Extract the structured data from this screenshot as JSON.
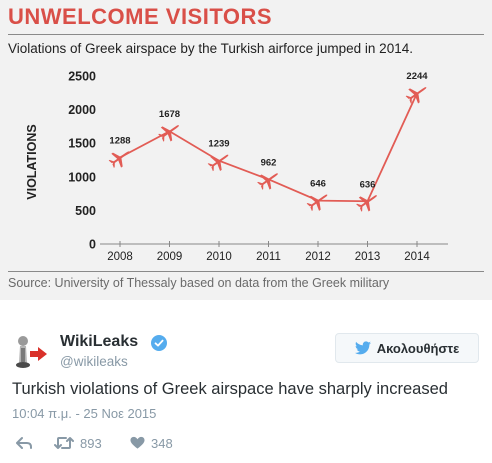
{
  "infographic": {
    "title": "UNWELCOME VISITORS",
    "subtitle": "Violations of Greek airspace by the Turkish airforce jumped in 2014.",
    "source": "Source: University of Thessaly based on data from the Greek military"
  },
  "chart_data": {
    "type": "line",
    "title": "UNWELCOME VISITORS",
    "subtitle": "Violations of Greek airspace by the Turkish airforce jumped in 2014.",
    "xlabel": "",
    "ylabel": "VIOLATIONS",
    "x": [
      "2008",
      "2009",
      "2010",
      "2011",
      "2012",
      "2013",
      "2014"
    ],
    "values": [
      1288,
      1678,
      1239,
      962,
      646,
      636,
      2244
    ],
    "yticks": [
      0,
      500,
      1000,
      1500,
      2000,
      2500
    ],
    "ylim": [
      0,
      2500
    ],
    "grid": false,
    "marker": "plane-icon",
    "line_color": "#e25c55"
  },
  "tweet": {
    "user_name": "WikiLeaks",
    "handle": "@wikileaks",
    "follow_label": "Ακολουθήστε",
    "text": "Turkish violations of Greek airspace have sharply increased",
    "timestamp": "10:04 π.μ. - 25 Νοε 2015",
    "retweets": "893",
    "likes": "348"
  }
}
